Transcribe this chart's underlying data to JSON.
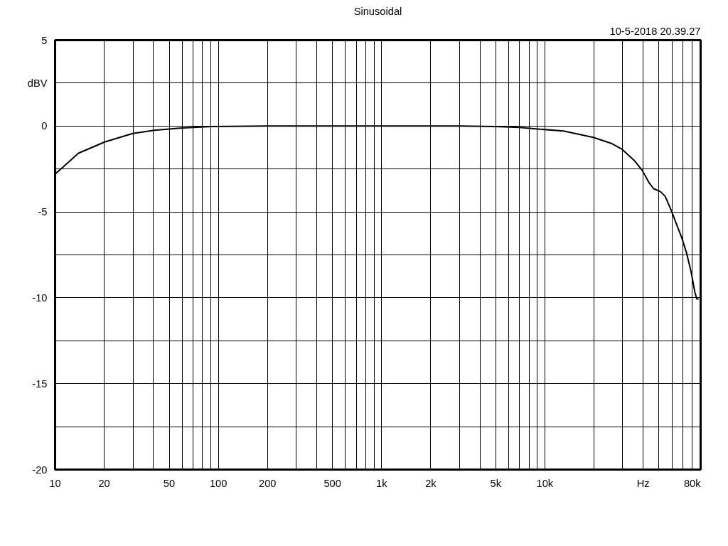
{
  "chart_data": {
    "type": "line",
    "title": "Sinusoidal",
    "annotations": [
      "10-5-2018 20.39.27"
    ],
    "xlabel": null,
    "log": "x",
    "grid": true,
    "marker": "none",
    "line_style": "solid",
    "xlim": [
      10,
      90000
    ],
    "ylim": [
      -20,
      5
    ],
    "xticks": [
      10,
      20,
      {
        "value": 30,
        "label": null
      },
      {
        "value": 40,
        "label": null
      },
      50,
      {
        "value": 60,
        "label": null
      },
      {
        "value": 70,
        "label": null
      },
      {
        "value": 80,
        "label": null
      },
      {
        "value": 90,
        "label": null
      },
      100,
      200,
      {
        "value": 300,
        "label": null
      },
      {
        "value": 400,
        "label": null
      },
      500,
      {
        "value": 600,
        "label": null
      },
      {
        "value": 700,
        "label": null
      },
      {
        "value": 800,
        "label": null
      },
      {
        "value": 900,
        "label": null
      },
      {
        "value": 1000,
        "label": "1k"
      },
      {
        "value": 2000,
        "label": "2k"
      },
      {
        "value": 3000,
        "label": null
      },
      {
        "value": 4000,
        "label": null
      },
      {
        "value": 5000,
        "label": "5k"
      },
      {
        "value": 6000,
        "label": null
      },
      {
        "value": 7000,
        "label": null
      },
      {
        "value": 8000,
        "label": null
      },
      {
        "value": 9000,
        "label": null
      },
      {
        "value": 10000,
        "label": "10k"
      },
      {
        "value": 20000,
        "label": null
      },
      {
        "value": 30000,
        "label": null
      },
      {
        "value": 40000,
        "label": "Hz"
      },
      {
        "value": 50000,
        "label": null
      },
      {
        "value": 60000,
        "label": null
      },
      {
        "value": 70000,
        "label": null
      },
      {
        "value": 80000,
        "label": "80k"
      }
    ],
    "yticks": [
      5,
      {
        "value": 2.5,
        "label": "dBV"
      },
      0,
      {
        "value": -2.5,
        "label": null
      },
      -5,
      {
        "value": -7.5,
        "label": null
      },
      -10,
      {
        "value": -12.5,
        "label": null
      },
      -15,
      {
        "value": -17.5,
        "label": null
      },
      -20
    ],
    "series": [
      {
        "color": "#000000",
        "x": [
          10,
          11,
          13.9,
          20.1,
          29.9,
          40.5,
          60.4,
          90,
          200,
          1000,
          3000,
          5000,
          7000,
          9300,
          13000,
          19800,
          25400,
          29700,
          35500,
          39500,
          43300,
          46300,
          51100,
          54600,
          59500,
          64600,
          69000,
          73800,
          79000,
          82900,
          85300,
          87400
        ],
        "values": [
          -2.79,
          -2.45,
          -1.58,
          -0.93,
          -0.43,
          -0.25,
          -0.11,
          -0.03,
          0,
          0,
          0,
          -0.03,
          -0.08,
          -0.18,
          -0.29,
          -0.66,
          -1.0,
          -1.35,
          -2.03,
          -2.58,
          -3.27,
          -3.64,
          -3.82,
          -4.09,
          -4.92,
          -5.81,
          -6.5,
          -7.39,
          -8.56,
          -9.66,
          -10.07,
          -10.07
        ]
      }
    ]
  }
}
